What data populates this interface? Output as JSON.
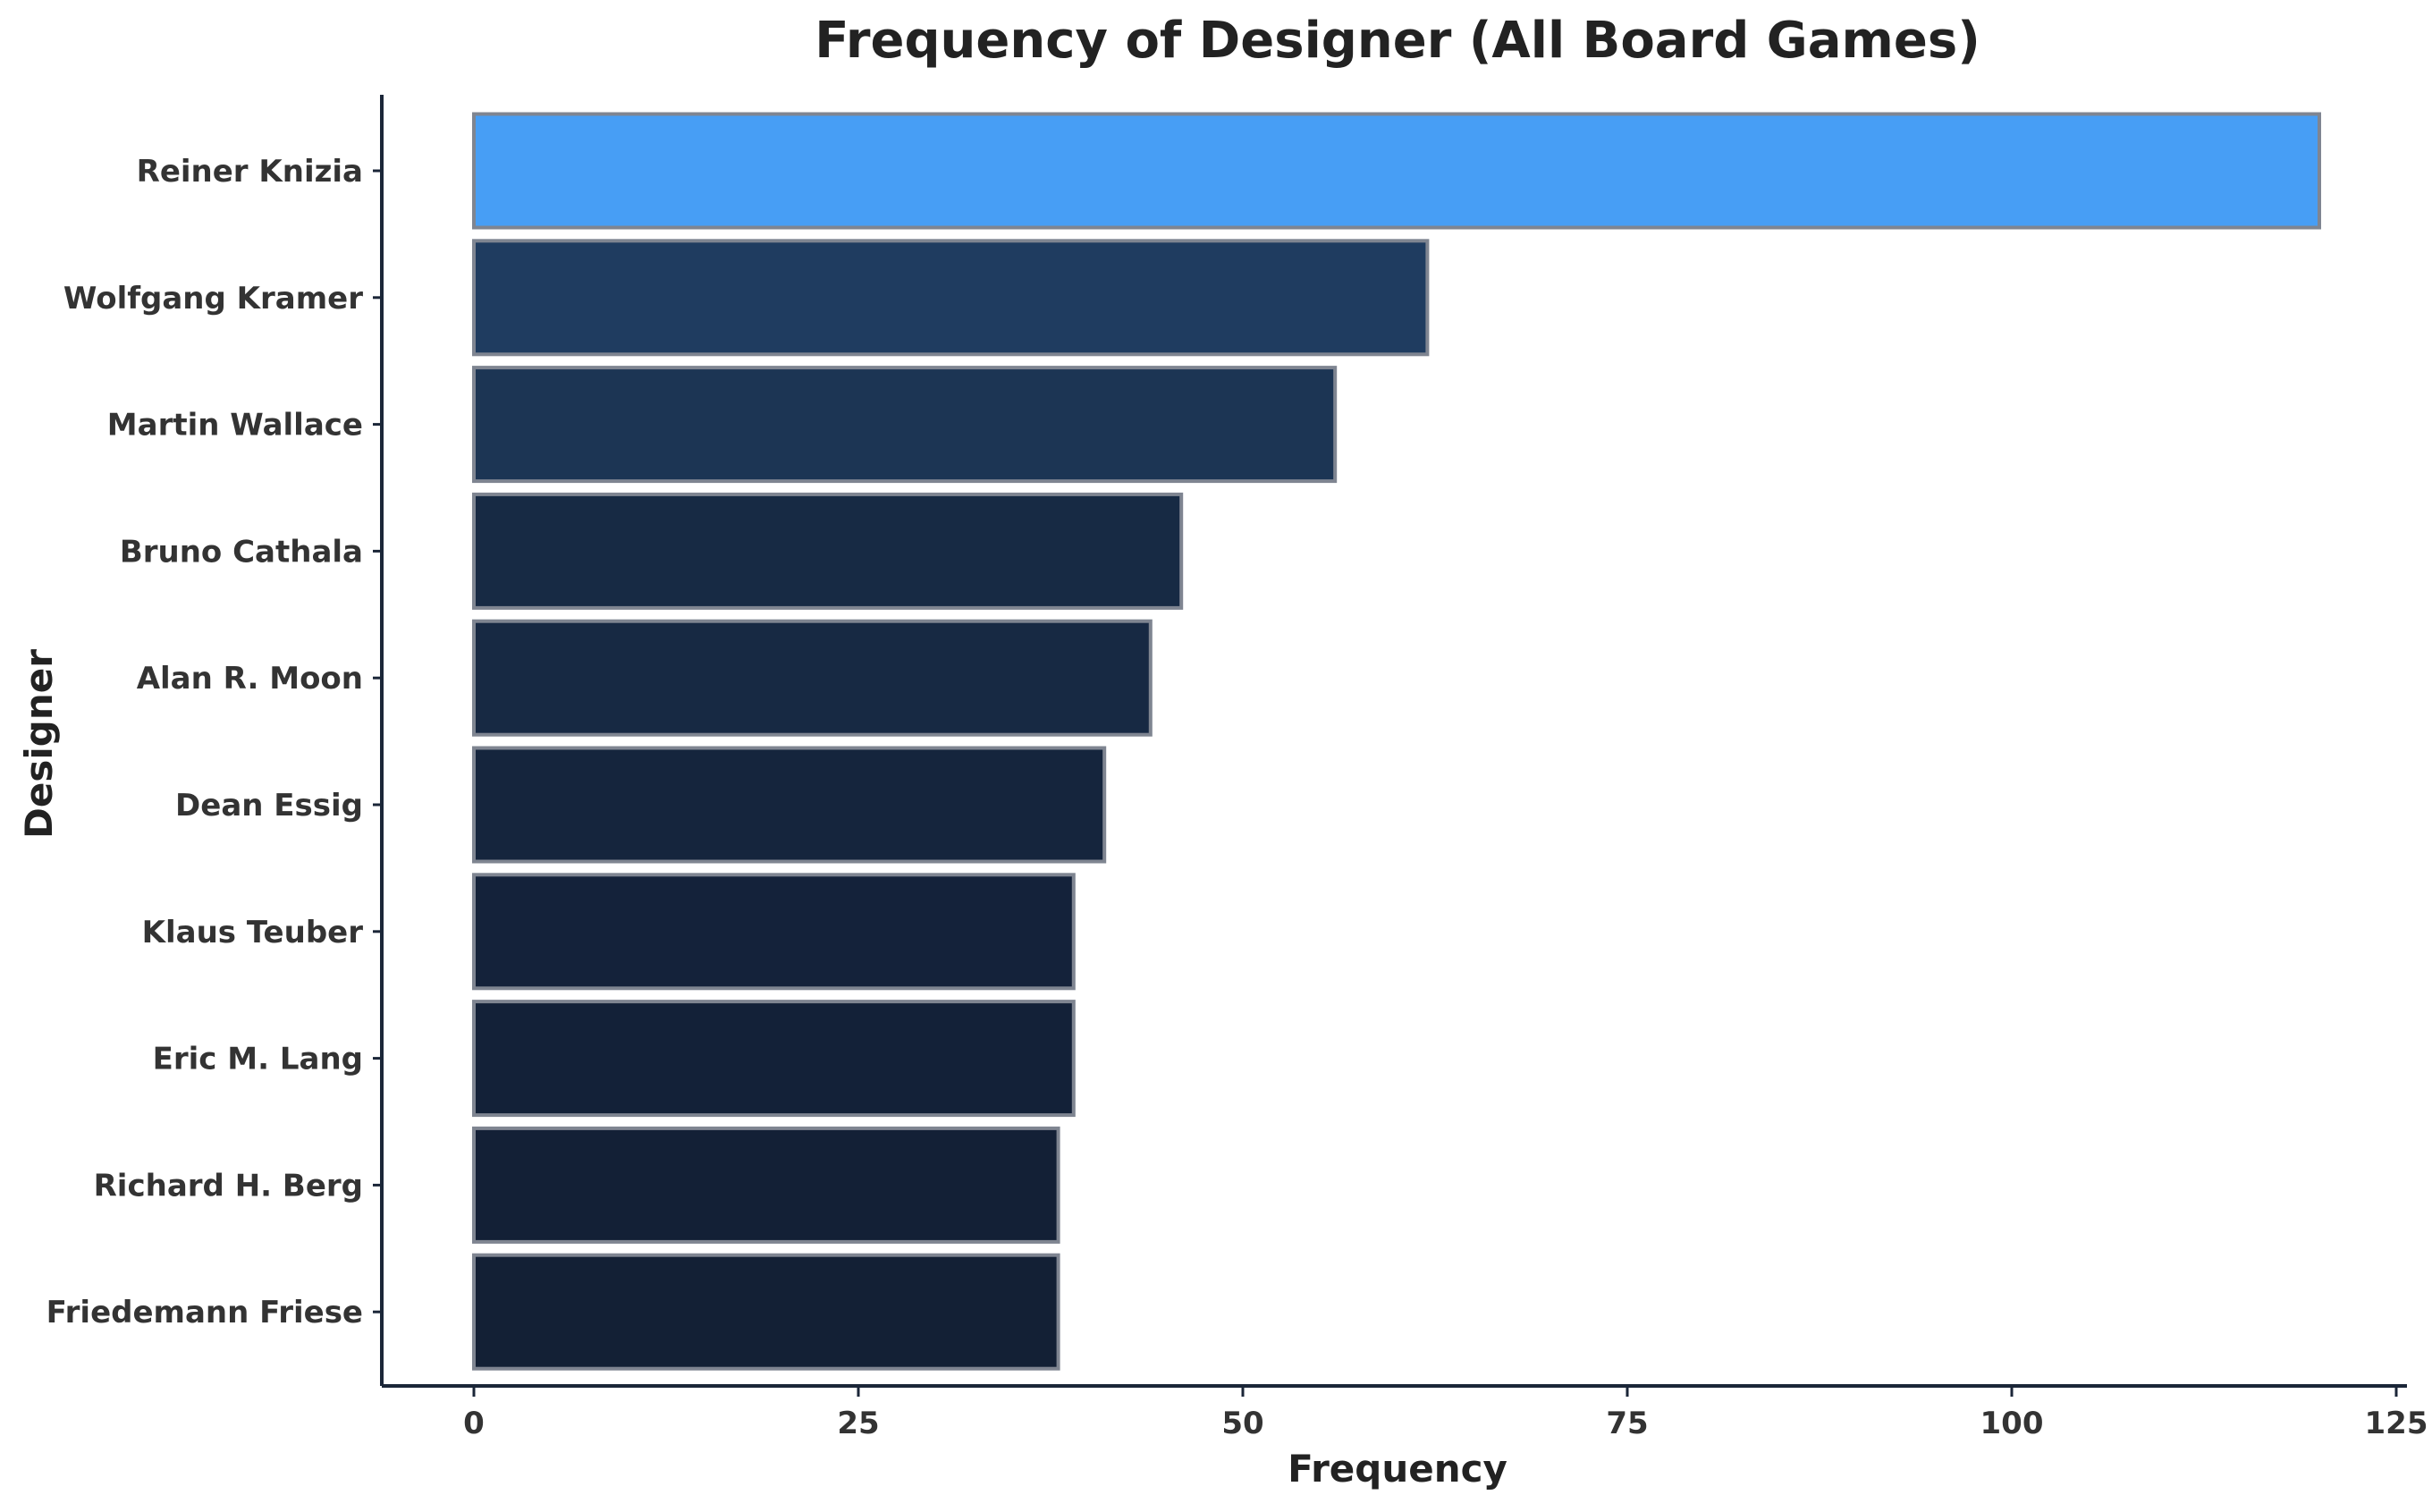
{
  "chart_data": {
    "type": "bar",
    "orientation": "horizontal",
    "title": "Frequency of Designer (All Board Games)",
    "xlabel": "Frequency",
    "ylabel": "Designer",
    "xlim": [
      -3,
      125
    ],
    "xticks": [
      0,
      25,
      50,
      75,
      100,
      125
    ],
    "grid": false,
    "legend": "none",
    "categories": [
      "Reiner Knizia",
      "Wolfgang Kramer",
      "Martin Wallace",
      "Bruno Cathala",
      "Alan R. Moon",
      "Dean Essig",
      "Klaus Teuber",
      "Eric M. Lang",
      "Richard H. Berg",
      "Friedemann Friese"
    ],
    "values": [
      120,
      62,
      56,
      46,
      44,
      41,
      39,
      39,
      38,
      38
    ],
    "bar_colors": [
      "#479ef5",
      "#1f3c60",
      "#1c3554",
      "#172a44",
      "#172943",
      "#15253d",
      "#14223a",
      "#132138",
      "#132036",
      "#132035"
    ],
    "bar_edge_color": "#7f8591"
  }
}
